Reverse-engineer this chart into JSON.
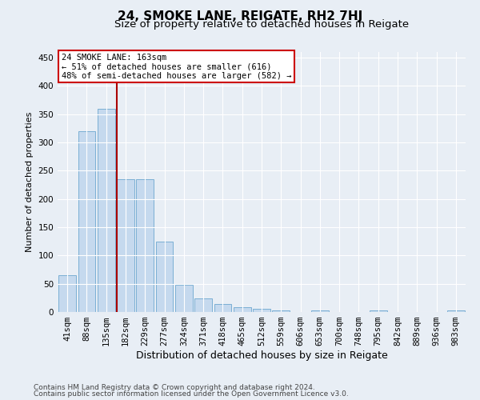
{
  "title": "24, SMOKE LANE, REIGATE, RH2 7HJ",
  "subtitle": "Size of property relative to detached houses in Reigate",
  "xlabel": "Distribution of detached houses by size in Reigate",
  "ylabel": "Number of detached properties",
  "bar_labels": [
    "41sqm",
    "88sqm",
    "135sqm",
    "182sqm",
    "229sqm",
    "277sqm",
    "324sqm",
    "371sqm",
    "418sqm",
    "465sqm",
    "512sqm",
    "559sqm",
    "606sqm",
    "653sqm",
    "700sqm",
    "748sqm",
    "795sqm",
    "842sqm",
    "889sqm",
    "936sqm",
    "983sqm"
  ],
  "bar_values": [
    65,
    320,
    360,
    235,
    235,
    125,
    48,
    24,
    14,
    9,
    5,
    3,
    0,
    3,
    0,
    0,
    3,
    0,
    0,
    0,
    3
  ],
  "bar_color": "#c5d9ee",
  "bar_edgecolor": "#7bafd4",
  "vline_color": "#aa0000",
  "annotation_text": "24 SMOKE LANE: 163sqm\n← 51% of detached houses are smaller (616)\n48% of semi-detached houses are larger (582) →",
  "annotation_box_facecolor": "#ffffff",
  "annotation_box_edgecolor": "#cc0000",
  "ylim": [
    0,
    460
  ],
  "yticks": [
    0,
    50,
    100,
    150,
    200,
    250,
    300,
    350,
    400,
    450
  ],
  "background_color": "#e8eef5",
  "grid_color": "#ffffff",
  "footer_line1": "Contains HM Land Registry data © Crown copyright and database right 2024.",
  "footer_line2": "Contains public sector information licensed under the Open Government Licence v3.0.",
  "title_fontsize": 11,
  "subtitle_fontsize": 9.5,
  "xlabel_fontsize": 9,
  "ylabel_fontsize": 8,
  "tick_fontsize": 7.5,
  "annotation_fontsize": 7.5,
  "footer_fontsize": 6.5
}
